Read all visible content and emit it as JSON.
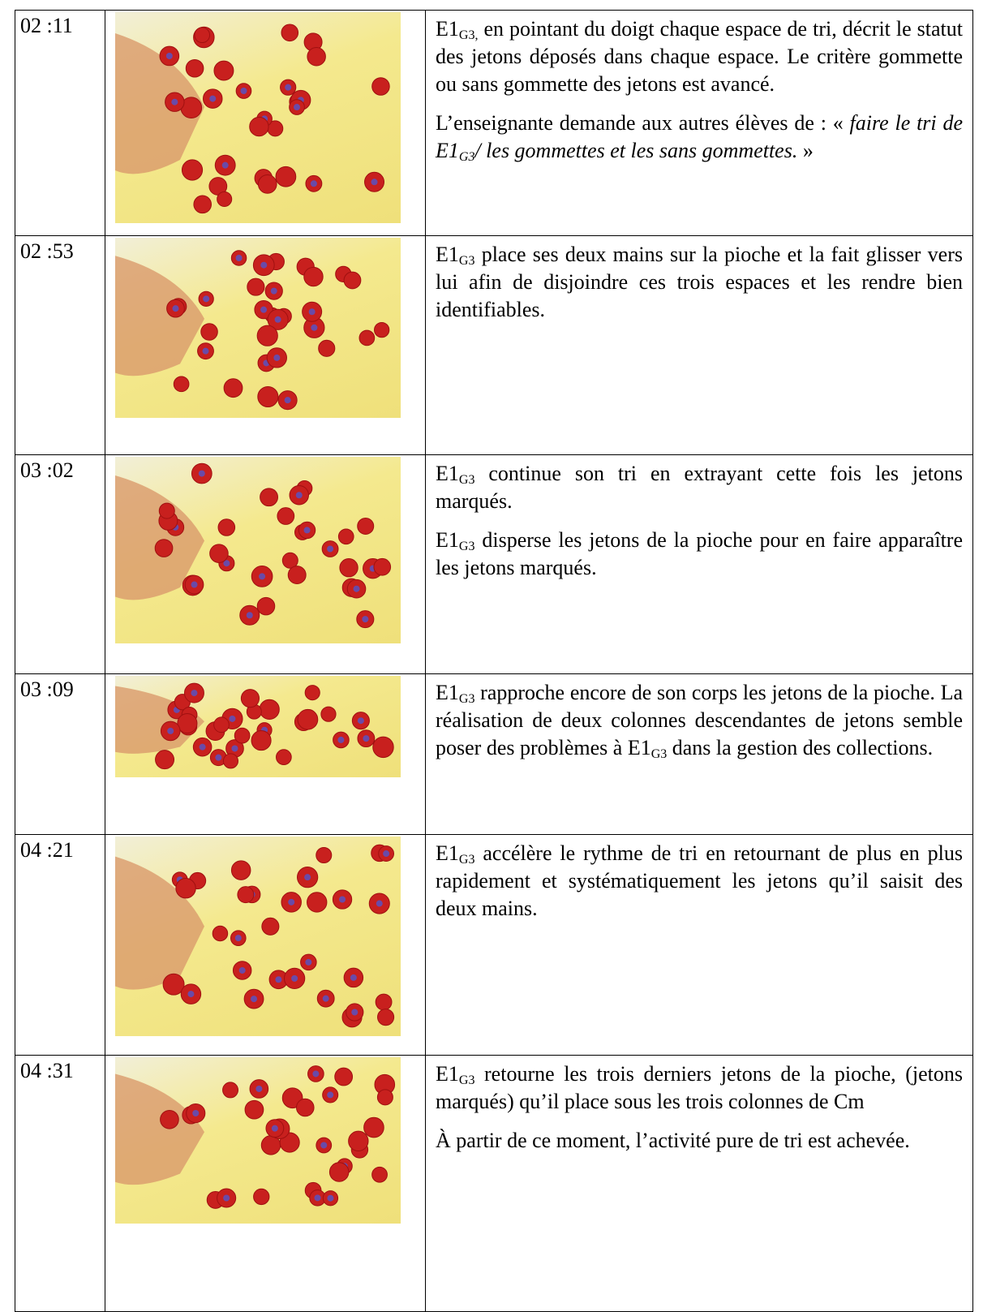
{
  "table": {
    "rows": [
      {
        "time": "02 :11",
        "paragraphs": [
          [
            {
              "text": "E1"
            },
            {
              "text": "G3,",
              "sub": true
            },
            {
              "text": " en pointant du doigt chaque espace de tri, décrit le statut des jetons déposés dans chaque espace. Le critère gommette ou sans gommette des jetons est avancé."
            }
          ],
          [
            {
              "text": "L’enseignante demande aux autres élèves de : « "
            },
            {
              "text": "faire le tri de E1",
              "italic": true
            },
            {
              "text": "G3",
              "italic": true,
              "sub": true
            },
            {
              "text": "/ les gommettes et les sans gommettes.",
              "italic": true
            },
            {
              "text": " »"
            }
          ]
        ]
      },
      {
        "time": "02 :53",
        "paragraphs": [
          [
            {
              "text": "E1"
            },
            {
              "text": "G3",
              "sub": true
            },
            {
              "text": " place ses deux mains sur la pioche et la fait glisser vers lui afin de disjoindre ces trois espaces et les rendre bien identifiables."
            }
          ]
        ]
      },
      {
        "time": "03 :02",
        "paragraphs": [
          [
            {
              "text": "E1"
            },
            {
              "text": "G3",
              "sub": true
            },
            {
              "text": " continue son tri en extrayant cette fois les jetons marqués."
            }
          ],
          [
            {
              "text": "E1"
            },
            {
              "text": "G3",
              "sub": true
            },
            {
              "text": " disperse les jetons de la pioche pour en faire apparaître les jetons marqués."
            }
          ]
        ]
      },
      {
        "time": "03 :09",
        "paragraphs": [
          [
            {
              "text": "E1"
            },
            {
              "text": "G3",
              "sub": true
            },
            {
              "text": " rapproche encore de son corps les jetons de la pioche. La réalisation de deux colonnes descendantes de jetons semble poser des problèmes à E1"
            },
            {
              "text": "G3",
              "sub": true
            },
            {
              "text": " dans la gestion des collections."
            }
          ]
        ]
      },
      {
        "time": "04 :21",
        "paragraphs": [
          [
            {
              "text": "E1"
            },
            {
              "text": "G3",
              "sub": true
            },
            {
              "text": " accélère le rythme de tri en retournant de plus en plus rapidement et systématiquement les jetons qu’il saisit des deux mains."
            }
          ]
        ]
      },
      {
        "time": "04 :31",
        "paragraphs": [
          [
            {
              "text": "E1"
            },
            {
              "text": "G3",
              "sub": true
            },
            {
              "text": " retourne les trois derniers jetons de la pioche, (jetons marqués) qu’il place sous les trois colonnes de Cm"
            }
          ],
          [
            {
              "text": "À partir de ce moment, l’activité pure de tri est achevée."
            }
          ]
        ]
      }
    ]
  }
}
